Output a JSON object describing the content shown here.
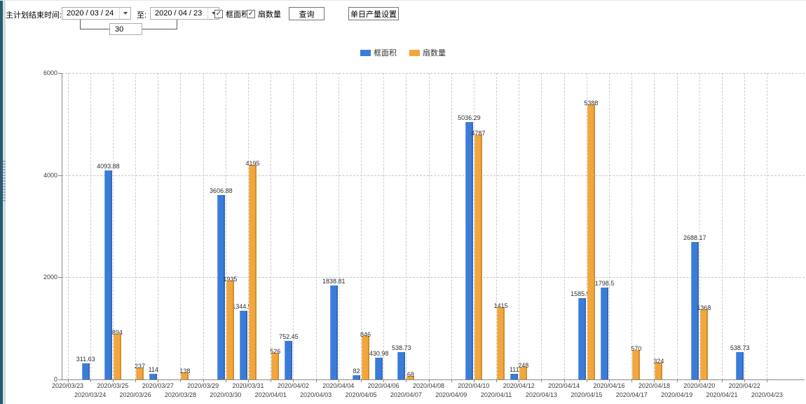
{
  "toolbar": {
    "plan_end_label": "主计划结束时间:",
    "date_from": "2020 / 03 / 24",
    "to_label": "至:",
    "date_to": "2020 / 04 / 23",
    "interval_days": "30",
    "checkmark": "✓",
    "checkboxes": [
      {
        "label": "框面积",
        "checked": true
      },
      {
        "label": "扇数量",
        "checked": true
      }
    ],
    "query_button": "查询",
    "daily_output_button": "单日产量设置"
  },
  "chart_data": {
    "type": "bar",
    "title": "",
    "xlabel": "",
    "ylabel": "",
    "ylim": [
      0,
      6000
    ],
    "yticks": [
      0,
      2000,
      4000,
      6000
    ],
    "grid": true,
    "legend_position": "top-center",
    "categories": [
      "2020/03/23",
      "2020/03/24",
      "2020/03/25",
      "2020/03/26",
      "2020/03/27",
      "2020/03/28",
      "2020/03/29",
      "2020/03/30",
      "2020/03/31",
      "2020/04/01",
      "2020/04/02",
      "2020/04/03",
      "2020/04/04",
      "2020/04/05",
      "2020/04/06",
      "2020/04/07",
      "2020/04/08",
      "2020/04/09",
      "2020/04/10",
      "2020/04/11",
      "2020/04/12",
      "2020/04/13",
      "2020/04/14",
      "2020/04/15",
      "2020/04/16",
      "2020/04/17",
      "2020/04/18",
      "2020/04/19",
      "2020/04/20",
      "2020/04/21",
      "2020/04/22",
      "2020/04/23"
    ],
    "series": [
      {
        "name": "框面积",
        "color": "#3b7cd8",
        "values": [
          null,
          311.63,
          4093.88,
          null,
          114,
          null,
          null,
          3606.88,
          1344.95,
          null,
          752.45,
          null,
          1838.81,
          82,
          430.98,
          538.73,
          null,
          null,
          5036.29,
          null,
          111,
          null,
          null,
          1585.96,
          1798.5,
          null,
          null,
          null,
          2688.17,
          null,
          538.73,
          null
        ]
      },
      {
        "name": "扇数量",
        "color": "#f2a63b",
        "values": [
          null,
          null,
          894,
          237,
          null,
          138,
          null,
          1935,
          4195,
          526,
          null,
          null,
          null,
          846,
          null,
          68,
          null,
          null,
          4787,
          1415,
          248,
          null,
          null,
          5388,
          null,
          570,
          324,
          null,
          1368,
          null,
          null,
          null
        ]
      }
    ]
  }
}
